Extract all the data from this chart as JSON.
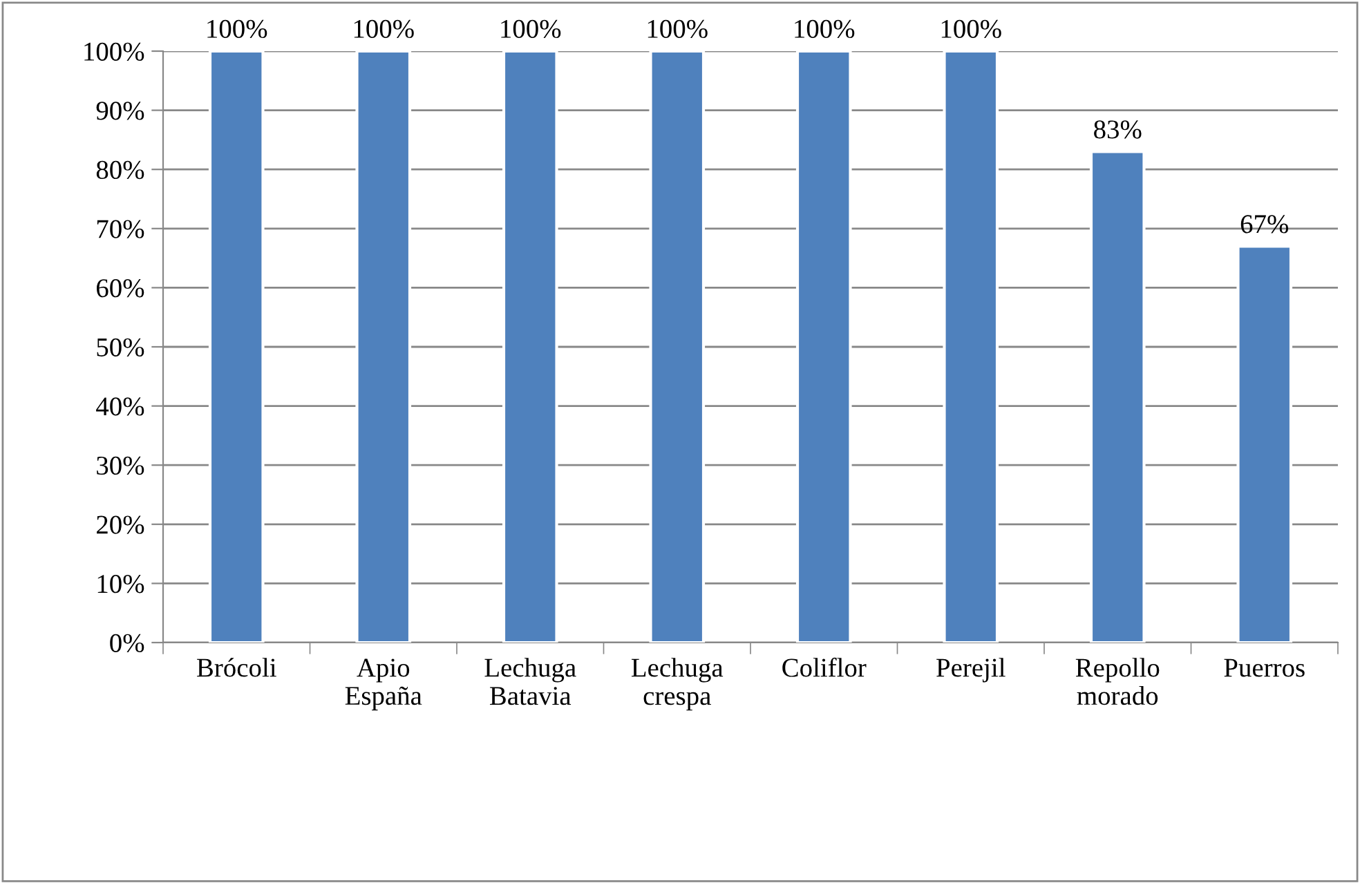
{
  "chart_data": {
    "type": "bar",
    "categories": [
      "Brócoli",
      "Apio\nEspaña",
      "Lechuga\nBatavia",
      "Lechuga\ncrespa",
      "Coliflor",
      "Perejil",
      "Repollo\nmorado",
      "Puerros"
    ],
    "values": [
      100,
      100,
      100,
      100,
      100,
      100,
      83,
      67
    ],
    "value_labels": [
      "100%",
      "100%",
      "100%",
      "100%",
      "100%",
      "100%",
      "83%",
      "67%"
    ],
    "color": "#4f81bd",
    "ylim": [
      0,
      100
    ],
    "yticks": [
      {
        "value": 0,
        "label": "0%"
      },
      {
        "value": 10,
        "label": "10%"
      },
      {
        "value": 20,
        "label": "20%"
      },
      {
        "value": 30,
        "label": "30%"
      },
      {
        "value": 40,
        "label": "40%"
      },
      {
        "value": 50,
        "label": "50%"
      },
      {
        "value": 60,
        "label": "60%"
      },
      {
        "value": 70,
        "label": "70%"
      },
      {
        "value": 80,
        "label": "80%"
      },
      {
        "value": 90,
        "label": "90%"
      },
      {
        "value": 100,
        "label": "100%"
      }
    ],
    "grid": "y"
  }
}
